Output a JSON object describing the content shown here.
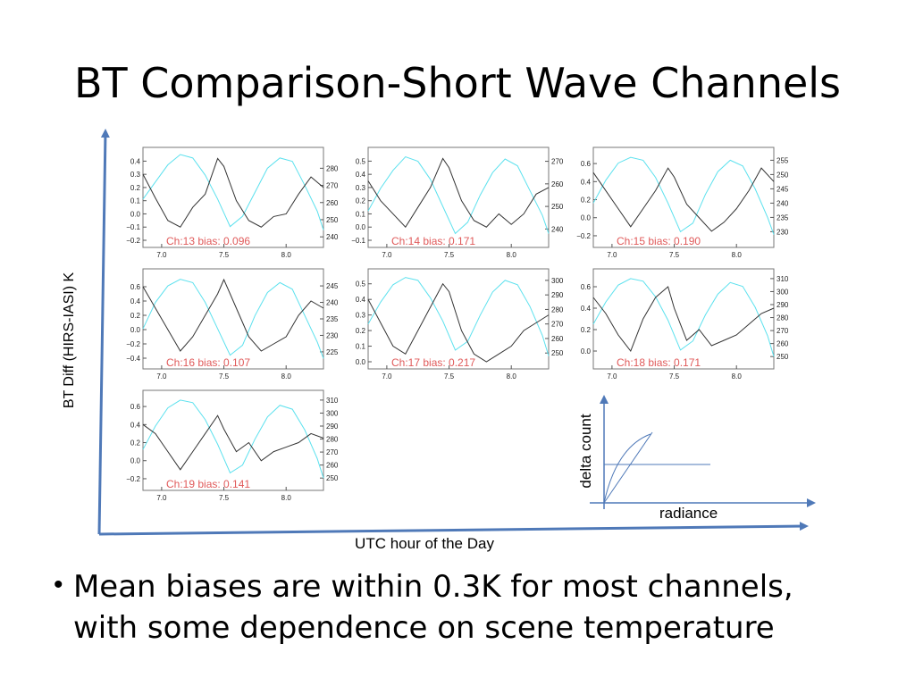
{
  "slide": {
    "title": "BT Comparison-Short Wave Channels",
    "y_axis_label": "BT Diff (HIRS-IASI) K",
    "x_axis_label": "UTC hour of the Day",
    "bullet": "Mean biases are within 0.3K for most channels, with some dependence on scene temperature"
  },
  "inset": {
    "ylabel": "delta count",
    "xlabel": "radiance"
  },
  "colors": {
    "bias_line": "#333333",
    "scene_line": "#5ce1ee",
    "label": "#e05a5a",
    "axis_arrow": "#4f79b8"
  },
  "chart_data": [
    {
      "type": "line",
      "channel_label": "Ch:13 bias: 0.096",
      "xlim": [
        6.85,
        8.3
      ],
      "x_ticks": [
        "7.0",
        "7.5",
        "8.0"
      ],
      "left_ticks": [
        "0.4",
        "0.3",
        "0.2",
        "0.1",
        "0.0",
        "−0.1",
        "−0.2"
      ],
      "ylim_left": [
        -0.2,
        0.45
      ],
      "right_ticks": [
        "280",
        "270",
        "260",
        "250",
        "240"
      ],
      "ylim_right": [
        238,
        288
      ],
      "series": [
        {
          "x": [
            6.85,
            6.95,
            7.05,
            7.15,
            7.25,
            7.35,
            7.45,
            7.5,
            7.6,
            7.7,
            7.8,
            7.9,
            8.0,
            8.1,
            8.2,
            8.3
          ],
          "y": [
            0.3,
            0.12,
            -0.05,
            -0.1,
            0.05,
            0.15,
            0.42,
            0.36,
            0.1,
            -0.05,
            -0.1,
            -0.02,
            0.0,
            0.15,
            0.28,
            0.2
          ]
        },
        {
          "x": [
            6.85,
            6.95,
            7.05,
            7.15,
            7.25,
            7.35,
            7.45,
            7.55,
            7.65,
            7.75,
            7.85,
            7.95,
            8.05,
            8.15,
            8.25,
            8.3
          ],
          "y": [
            262,
            272,
            282,
            288,
            286,
            276,
            262,
            246,
            252,
            266,
            280,
            286,
            284,
            270,
            255,
            244
          ]
        }
      ]
    },
    {
      "type": "line",
      "channel_label": "Ch:14 bias: 0.171",
      "xlim": [
        6.85,
        8.3
      ],
      "x_ticks": [
        "7.0",
        "7.5",
        "8.0"
      ],
      "left_ticks": [
        "0.5",
        "0.4",
        "0.3",
        "0.2",
        "0.1",
        "0.0",
        "−0.1"
      ],
      "ylim_left": [
        -0.1,
        0.55
      ],
      "right_ticks": [
        "270",
        "260",
        "250",
        "240"
      ],
      "ylim_right": [
        235,
        273
      ],
      "series": [
        {
          "x": [
            6.85,
            6.95,
            7.05,
            7.15,
            7.25,
            7.35,
            7.45,
            7.5,
            7.6,
            7.7,
            7.8,
            7.9,
            8.0,
            8.1,
            8.2,
            8.3
          ],
          "y": [
            0.35,
            0.2,
            0.1,
            0.0,
            0.15,
            0.3,
            0.52,
            0.45,
            0.2,
            0.05,
            0.0,
            0.1,
            0.02,
            0.1,
            0.25,
            0.3
          ]
        },
        {
          "x": [
            6.85,
            6.95,
            7.05,
            7.15,
            7.25,
            7.35,
            7.45,
            7.55,
            7.65,
            7.75,
            7.85,
            7.95,
            8.05,
            8.15,
            8.25,
            8.3
          ],
          "y": [
            248,
            258,
            266,
            272,
            270,
            262,
            250,
            238,
            243,
            255,
            265,
            271,
            268,
            257,
            246,
            238
          ]
        }
      ]
    },
    {
      "type": "line",
      "channel_label": "Ch:15 bias: 0.190",
      "xlim": [
        6.85,
        8.3
      ],
      "x_ticks": [
        "7.0",
        "7.5",
        "8.0"
      ],
      "left_ticks": [
        "0.6",
        "0.4",
        "0.2",
        "0.0",
        "−0.2"
      ],
      "ylim_left": [
        -0.25,
        0.7
      ],
      "right_ticks": [
        "255",
        "250",
        "245",
        "240",
        "235",
        "230"
      ],
      "ylim_right": [
        227,
        257
      ],
      "series": [
        {
          "x": [
            6.85,
            6.95,
            7.05,
            7.15,
            7.25,
            7.35,
            7.45,
            7.5,
            7.6,
            7.7,
            7.8,
            7.9,
            8.0,
            8.1,
            8.2,
            8.3
          ],
          "y": [
            0.5,
            0.3,
            0.1,
            -0.1,
            0.1,
            0.3,
            0.55,
            0.45,
            0.15,
            0.0,
            -0.15,
            -0.05,
            0.1,
            0.3,
            0.55,
            0.4
          ]
        },
        {
          "x": [
            6.85,
            6.95,
            7.05,
            7.15,
            7.25,
            7.35,
            7.45,
            7.55,
            7.65,
            7.75,
            7.85,
            7.95,
            8.05,
            8.15,
            8.25,
            8.3
          ],
          "y": [
            240,
            248,
            254,
            256,
            255,
            249,
            240,
            230,
            233,
            243,
            251,
            255,
            253,
            245,
            235,
            229
          ]
        }
      ]
    },
    {
      "type": "line",
      "channel_label": "Ch:16 bias: 0.107",
      "xlim": [
        6.85,
        8.3
      ],
      "x_ticks": [
        "7.0",
        "7.5",
        "8.0"
      ],
      "left_ticks": [
        "0.6",
        "0.4",
        "0.2",
        "0.0",
        "−0.2",
        "−0.4"
      ],
      "ylim_left": [
        -0.45,
        0.75
      ],
      "right_ticks": [
        "245",
        "240",
        "235",
        "230",
        "225"
      ],
      "ylim_right": [
        222,
        248
      ],
      "series": [
        {
          "x": [
            6.85,
            6.95,
            7.05,
            7.15,
            7.25,
            7.35,
            7.45,
            7.5,
            7.6,
            7.7,
            7.8,
            7.9,
            8.0,
            8.1,
            8.2,
            8.3
          ],
          "y": [
            0.6,
            0.3,
            0.0,
            -0.3,
            -0.1,
            0.2,
            0.5,
            0.7,
            0.3,
            -0.1,
            -0.3,
            -0.2,
            -0.1,
            0.2,
            0.4,
            0.3
          ]
        },
        {
          "x": [
            6.85,
            6.95,
            7.05,
            7.15,
            7.25,
            7.35,
            7.45,
            7.55,
            7.65,
            7.75,
            7.85,
            7.95,
            8.05,
            8.15,
            8.25,
            8.3
          ],
          "y": [
            232,
            240,
            245,
            247,
            246,
            240,
            232,
            224,
            227,
            236,
            243,
            246,
            244,
            236,
            228,
            223
          ]
        }
      ]
    },
    {
      "type": "line",
      "channel_label": "Ch:17 bias: 0.217",
      "xlim": [
        6.85,
        8.3
      ],
      "x_ticks": [
        "7.0",
        "7.5",
        "8.0"
      ],
      "left_ticks": [
        "0.5",
        "0.4",
        "0.3",
        "0.2",
        "0.1",
        "0.0"
      ],
      "ylim_left": [
        0.0,
        0.55
      ],
      "right_ticks": [
        "300",
        "290",
        "280",
        "270",
        "260",
        "250"
      ],
      "ylim_right": [
        244,
        303
      ],
      "series": [
        {
          "x": [
            6.85,
            6.95,
            7.05,
            7.15,
            7.25,
            7.35,
            7.45,
            7.5,
            7.6,
            7.7,
            7.8,
            7.9,
            8.0,
            8.1,
            8.2,
            8.3
          ],
          "y": [
            0.4,
            0.25,
            0.1,
            0.05,
            0.2,
            0.35,
            0.5,
            0.45,
            0.2,
            0.05,
            0.0,
            0.05,
            0.1,
            0.2,
            0.25,
            0.3
          ]
        },
        {
          "x": [
            6.85,
            6.95,
            7.05,
            7.15,
            7.25,
            7.35,
            7.45,
            7.55,
            7.65,
            7.75,
            7.85,
            7.95,
            8.05,
            8.15,
            8.25,
            8.3
          ],
          "y": [
            270,
            285,
            297,
            302,
            300,
            288,
            272,
            252,
            258,
            276,
            292,
            300,
            297,
            282,
            262,
            248
          ]
        }
      ]
    },
    {
      "type": "line",
      "channel_label": "Ch:18 bias: 0.171",
      "xlim": [
        6.85,
        8.3
      ],
      "x_ticks": [
        "7.0",
        "7.5",
        "8.0"
      ],
      "left_ticks": [
        "0.6",
        "0.4",
        "0.2",
        "0.0"
      ],
      "ylim_left": [
        -0.1,
        0.7
      ],
      "right_ticks": [
        "310",
        "300",
        "290",
        "280",
        "270",
        "260",
        "250"
      ],
      "ylim_right": [
        246,
        312
      ],
      "series": [
        {
          "x": [
            6.85,
            6.95,
            7.05,
            7.15,
            7.25,
            7.35,
            7.45,
            7.5,
            7.6,
            7.7,
            7.8,
            7.9,
            8.0,
            8.1,
            8.2,
            8.3
          ],
          "y": [
            0.5,
            0.35,
            0.15,
            0.0,
            0.3,
            0.5,
            0.6,
            0.4,
            0.1,
            0.2,
            0.05,
            0.1,
            0.15,
            0.25,
            0.35,
            0.4
          ]
        },
        {
          "x": [
            6.85,
            6.95,
            7.05,
            7.15,
            7.25,
            7.35,
            7.45,
            7.55,
            7.65,
            7.75,
            7.85,
            7.95,
            8.05,
            8.15,
            8.25,
            8.3
          ],
          "y": [
            275,
            292,
            305,
            310,
            308,
            296,
            278,
            255,
            262,
            282,
            298,
            307,
            304,
            288,
            266,
            250
          ]
        }
      ]
    },
    {
      "type": "line",
      "channel_label": "Ch:19 bias: 0.141",
      "xlim": [
        6.85,
        8.3
      ],
      "x_ticks": [
        "7.0",
        "7.5",
        "8.0"
      ],
      "left_ticks": [
        "0.6",
        "0.4",
        "0.2",
        "0.0",
        "−0.2"
      ],
      "ylim_left": [
        -0.25,
        0.7
      ],
      "right_ticks": [
        "310",
        "300",
        "290",
        "280",
        "270",
        "260",
        "250"
      ],
      "ylim_right": [
        246,
        312
      ],
      "series": [
        {
          "x": [
            6.85,
            6.95,
            7.05,
            7.15,
            7.25,
            7.35,
            7.45,
            7.5,
            7.6,
            7.7,
            7.8,
            7.9,
            8.0,
            8.1,
            8.2,
            8.3
          ],
          "y": [
            0.4,
            0.3,
            0.1,
            -0.1,
            0.1,
            0.3,
            0.5,
            0.35,
            0.1,
            0.2,
            0.0,
            0.1,
            0.15,
            0.2,
            0.3,
            0.25
          ]
        },
        {
          "x": [
            6.85,
            6.95,
            7.05,
            7.15,
            7.25,
            7.35,
            7.45,
            7.55,
            7.65,
            7.75,
            7.85,
            7.95,
            8.05,
            8.15,
            8.25,
            8.3
          ],
          "y": [
            272,
            290,
            304,
            310,
            308,
            295,
            276,
            254,
            260,
            280,
            297,
            306,
            303,
            287,
            265,
            250
          ]
        }
      ]
    }
  ]
}
